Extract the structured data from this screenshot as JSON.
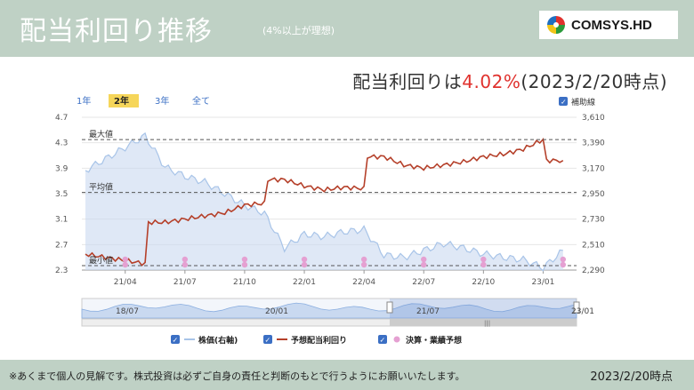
{
  "header": {
    "title": "配当利回り推移",
    "subtitle": "(4%以上が理想)",
    "logo_text": "COMSYS.HD"
  },
  "yield_line": {
    "prefix": "配当利回りは",
    "value": "4.02%",
    "suffix": "(2023/2/20時点)"
  },
  "range_tabs": [
    {
      "label": "1年",
      "active": false
    },
    {
      "label": "2年",
      "active": true
    },
    {
      "label": "3年",
      "active": false
    },
    {
      "label": "全て",
      "active": false
    }
  ],
  "aux_line_label": "補助線",
  "annotations": {
    "max": "最大値",
    "avg": "平均値",
    "min": "最小値"
  },
  "chart_data": {
    "type": "line",
    "x_ticks": [
      "21/04",
      "21/07",
      "21/10",
      "22/01",
      "22/04",
      "22/07",
      "22/10",
      "23/01"
    ],
    "y_left_ticks": [
      2.3,
      2.7,
      3.1,
      3.5,
      3.9,
      4.3,
      4.7
    ],
    "y_right_ticks": [
      2290,
      2510,
      2730,
      2950,
      3170,
      3390,
      3610
    ],
    "ylim_left": [
      2.3,
      4.7
    ],
    "ylim_right": [
      2290,
      3610
    ],
    "reference_lines": {
      "max": 4.35,
      "avg": 3.52,
      "min": 2.37
    },
    "series": [
      {
        "name": "株価(右軸)",
        "axis": "right",
        "color": "#a8c4e8",
        "x": [
          "21/02",
          "21/03",
          "21/04",
          "21/05",
          "21/06",
          "21/07",
          "21/08",
          "21/09",
          "21/10",
          "21/11",
          "21/12",
          "22/01",
          "22/02",
          "22/03",
          "22/04",
          "22/05",
          "22/06",
          "22/07",
          "22/08",
          "22/09",
          "22/10",
          "22/11",
          "22/12",
          "23/01",
          "23/02"
        ],
        "values": [
          3150,
          3250,
          3350,
          3450,
          3180,
          3100,
          3050,
          2950,
          2850,
          2780,
          2480,
          2600,
          2580,
          2620,
          2640,
          2420,
          2400,
          2460,
          2520,
          2480,
          2430,
          2400,
          2380,
          2310,
          2460
        ]
      },
      {
        "name": "予想配当利回り",
        "axis": "left",
        "color": "#b5402a",
        "x": [
          "21/02",
          "21/03",
          "21/04",
          "21/05",
          "21/06",
          "21/07",
          "21/08",
          "21/09",
          "21/10",
          "21/11",
          "21/12",
          "22/01",
          "22/02",
          "22/03",
          "22/04",
          "22/05",
          "22/06",
          "22/07",
          "22/08",
          "22/09",
          "22/10",
          "22/11",
          "22/12",
          "23/01",
          "23/02"
        ],
        "values": [
          2.55,
          2.5,
          2.45,
          2.4,
          3.05,
          3.1,
          3.15,
          3.2,
          3.32,
          3.35,
          3.72,
          3.62,
          3.56,
          3.6,
          3.58,
          4.08,
          3.95,
          3.9,
          3.95,
          4.0,
          4.08,
          4.12,
          4.2,
          4.35,
          4.02
        ]
      }
    ],
    "event_markers_x": [
      "21/04",
      "21/07",
      "21/10",
      "22/01",
      "22/04",
      "22/07",
      "22/10",
      "23/02"
    ],
    "navigator_ticks": [
      "18/07",
      "20/01",
      "21/07",
      "23/01"
    ],
    "legend": [
      {
        "label": "株価(右軸)",
        "color": "#a8c4e8",
        "kind": "line"
      },
      {
        "label": "予想配当利回り",
        "color": "#b5402a",
        "kind": "line"
      },
      {
        "label": "決算・業績予想",
        "color": "#e5a0d2",
        "kind": "dot"
      }
    ]
  },
  "footer": {
    "note": "※あくまで個人の見解です。株式投資は必ずご自身の責任と判断のもとで行うようにお願いいたします。",
    "date": "2023/2/20時点"
  },
  "colors": {
    "background": "#bfd1c5",
    "accent_red": "#e0312d",
    "tab_active": "#f6d65a",
    "price_fill": "#c9d9f0",
    "yield_line": "#b5402a",
    "marker": "#e5a0d2"
  }
}
